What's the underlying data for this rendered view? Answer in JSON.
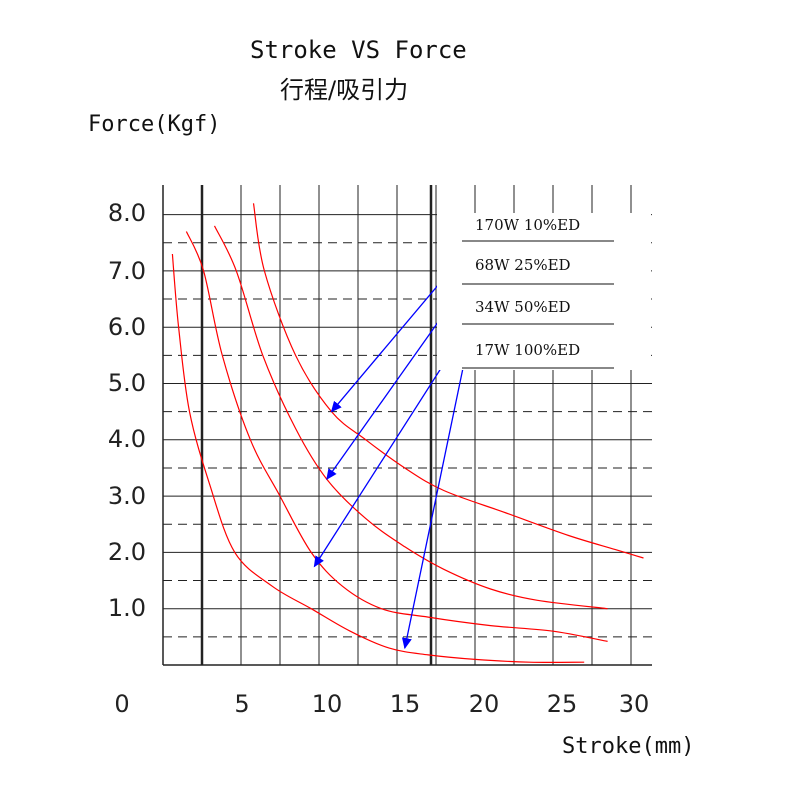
{
  "chart_data": {
    "type": "line",
    "title": "Stroke VS  Force",
    "subtitle": "行程/吸引力",
    "ylabel": "Force(Kgf)",
    "xlabel": "Stroke(mm)",
    "xlim": [
      0,
      30
    ],
    "ylim": [
      0,
      8.0
    ],
    "x_ticks": [
      "0",
      "5",
      "10",
      "15",
      "20",
      "25",
      "30"
    ],
    "y_ticks": [
      "8.0",
      "7.0",
      "6.0",
      "5.0",
      "4.0",
      "3.0",
      "2.0",
      "1.0"
    ],
    "grid": true,
    "legend_position": "top-right",
    "colors": {
      "curve": "#ff0000",
      "arrow": "#0000ff",
      "grid": "#222222"
    },
    "series": [
      {
        "name": "170W 10%ED",
        "x": [
          5.8,
          6.5,
          8.5,
          10.8,
          13,
          15.5,
          18,
          22,
          26,
          29,
          30.8
        ],
        "y": [
          8.2,
          7.0,
          5.5,
          4.5,
          4.0,
          3.5,
          3.1,
          2.7,
          2.3,
          2.05,
          1.9
        ]
      },
      {
        "name": "68W 25%ED",
        "x": [
          3.3,
          4.7,
          6.4,
          8.5,
          10.5,
          13,
          15.5,
          18,
          21,
          24,
          28.5
        ],
        "y": [
          7.8,
          7.0,
          5.5,
          4.2,
          3.3,
          2.6,
          2.1,
          1.7,
          1.35,
          1.15,
          1.0
        ]
      },
      {
        "name": "34W  50%ED",
        "x": [
          1.5,
          2.6,
          3.8,
          5.6,
          7.5,
          9.5,
          11.5,
          14,
          17,
          21,
          25,
          28.5
        ],
        "y": [
          7.7,
          7.0,
          5.5,
          4.0,
          3.0,
          2.0,
          1.4,
          1.0,
          0.85,
          0.7,
          0.6,
          0.42
        ]
      },
      {
        "name": "17W 100%ED",
        "x": [
          0.6,
          1.0,
          1.7,
          3.0,
          4.6,
          7,
          9.5,
          12,
          14.5,
          17,
          20,
          23.5,
          27
        ],
        "y": [
          7.3,
          6.0,
          4.5,
          3.2,
          2.0,
          1.4,
          1.0,
          0.6,
          0.3,
          0.18,
          0.1,
          0.05,
          0.05
        ]
      }
    ]
  }
}
